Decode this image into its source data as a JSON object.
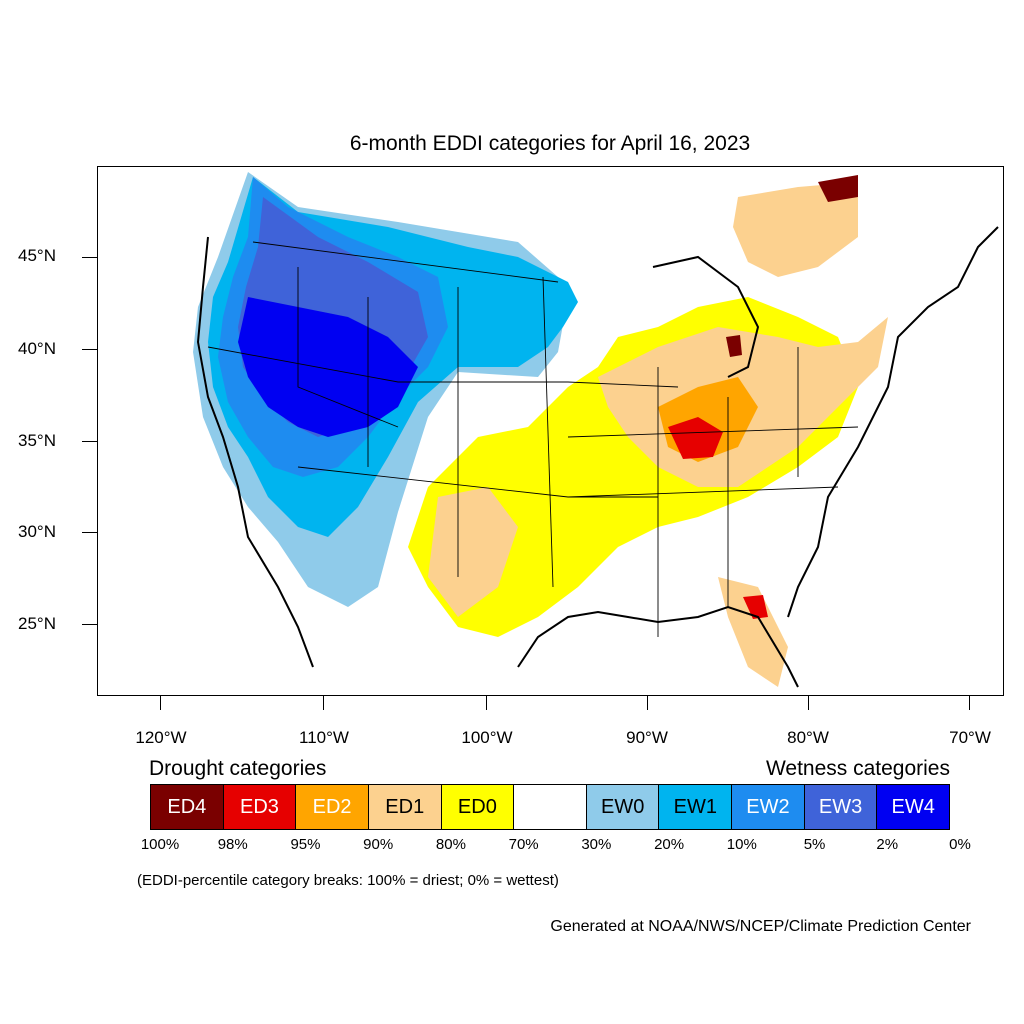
{
  "title": "6-month EDDI categories for April 16, 2023",
  "lat_labels": [
    "45°N",
    "40°N",
    "35°N",
    "30°N",
    "25°N"
  ],
  "lon_labels": [
    "120°W",
    "110°W",
    "100°W",
    "90°W",
    "80°W",
    "70°W"
  ],
  "legend": {
    "drought_heading": "Drought categories",
    "wetness_heading": "Wetness categories",
    "categories": [
      {
        "label": "ED4",
        "color": "#7a0000",
        "text_color": "#ffffff"
      },
      {
        "label": "ED3",
        "color": "#e60000",
        "text_color": "#ffffff"
      },
      {
        "label": "ED2",
        "color": "#ffa500",
        "text_color": "#ffffff"
      },
      {
        "label": "ED1",
        "color": "#fcd18f",
        "text_color": "#000000"
      },
      {
        "label": "ED0",
        "color": "#ffff00",
        "text_color": "#000000"
      },
      {
        "label": "",
        "color": "#ffffff",
        "text_color": "#000000"
      },
      {
        "label": "EW0",
        "color": "#8fcbea",
        "text_color": "#000000"
      },
      {
        "label": "EW1",
        "color": "#00b4ef",
        "text_color": "#000000"
      },
      {
        "label": "EW2",
        "color": "#1e8cf0",
        "text_color": "#ffffff"
      },
      {
        "label": "EW3",
        "color": "#3f63d9",
        "text_color": "#ffffff"
      },
      {
        "label": "EW4",
        "color": "#0000f2",
        "text_color": "#ffffff"
      }
    ],
    "breaks": [
      "100%",
      "98%",
      "95%",
      "90%",
      "80%",
      "70%",
      "30%",
      "20%",
      "10%",
      "5%",
      "2%",
      "0%"
    ]
  },
  "note": "(EDDI-percentile category breaks: 100% = driest; 0% = wettest)",
  "credit": "Generated at NOAA/NWS/NCEP/Climate Prediction Center"
}
